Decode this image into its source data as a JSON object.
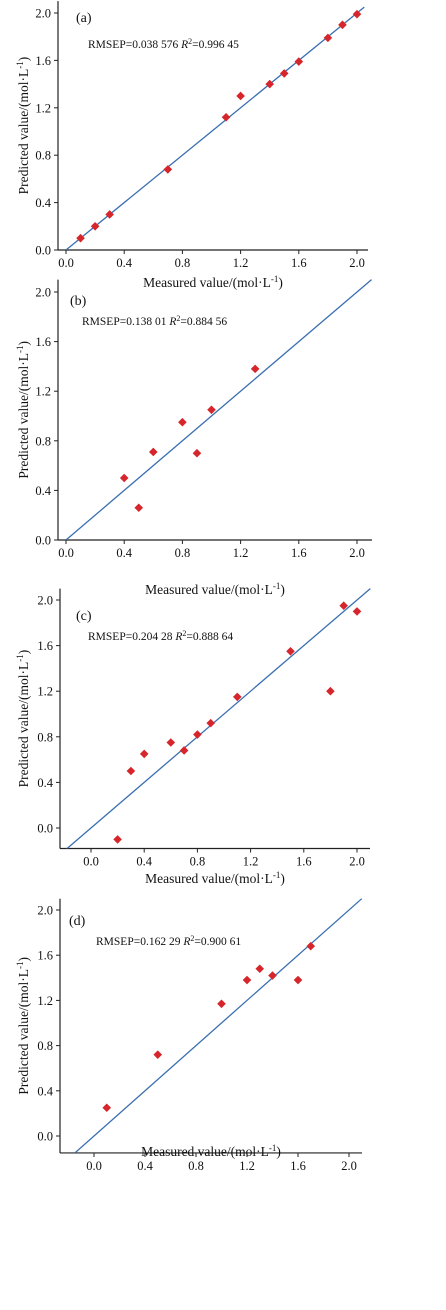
{
  "chart_data": [
    {
      "type": "scatter",
      "panel_label": "(a)",
      "stats_rmsep": "RMSEP=0.038 576",
      "stats_r2": "=0.996 45",
      "xlabel": "Measured value/(mol·L",
      "ylabel": "Predicted value/(mol·L",
      "xlim": [
        0,
        2.1
      ],
      "ylim": [
        0,
        2.1
      ],
      "xticks": [
        "0.0",
        "0.4",
        "0.8",
        "1.2",
        "1.6",
        "2.0"
      ],
      "yticks": [
        "0.0",
        "0.4",
        "0.8",
        "1.2",
        "1.6",
        "2.0"
      ],
      "x": [
        0.1,
        0.2,
        0.3,
        0.7,
        1.1,
        1.2,
        1.4,
        1.5,
        1.6,
        1.8,
        1.9,
        2.0
      ],
      "y": [
        0.1,
        0.2,
        0.3,
        0.68,
        1.12,
        1.3,
        1.4,
        1.49,
        1.59,
        1.79,
        1.9,
        1.99
      ],
      "fit_line": [
        [
          0,
          0
        ],
        [
          2.05,
          2.05
        ]
      ]
    },
    {
      "type": "scatter",
      "panel_label": "(b)",
      "stats_rmsep": "RMSEP=0.138 01",
      "stats_r2": "=0.884 56",
      "xlabel": "Measured value/(mol·L",
      "ylabel": "Predicted value/(mol·L",
      "xlim": [
        0,
        2.1
      ],
      "ylim": [
        0,
        2.1
      ],
      "xticks": [
        "0.0",
        "0.4",
        "0.8",
        "1.2",
        "1.6",
        "2.0"
      ],
      "yticks": [
        "0.0",
        "0.4",
        "0.8",
        "1.2",
        "1.6",
        "2.0"
      ],
      "x": [
        0.4,
        0.5,
        0.6,
        0.8,
        0.9,
        1.0,
        1.3
      ],
      "y": [
        0.5,
        0.26,
        0.71,
        0.95,
        0.7,
        1.05,
        1.38
      ],
      "fit_line": [
        [
          0,
          0
        ],
        [
          2.1,
          2.1
        ]
      ]
    },
    {
      "type": "scatter",
      "panel_label": "(c)",
      "stats_rmsep": "RMSEP=0.204 28",
      "stats_r2": "=0.888 64",
      "xlabel": "Measured value/(mol·L",
      "ylabel": "Predicted value/(mol·L",
      "xlim": [
        -0.2,
        2.1
      ],
      "ylim": [
        -0.18,
        2.1
      ],
      "xticks": [
        "0.0",
        "0.4",
        "0.8",
        "1.2",
        "1.6",
        "2.0"
      ],
      "yticks": [
        "0.0",
        "0.4",
        "0.8",
        "1.2",
        "1.6",
        "2.0"
      ],
      "x": [
        0.2,
        0.3,
        0.4,
        0.6,
        0.7,
        0.8,
        0.9,
        1.1,
        1.5,
        1.8,
        1.9,
        2.0
      ],
      "y": [
        -0.1,
        0.5,
        0.65,
        0.75,
        0.68,
        0.82,
        0.92,
        1.15,
        1.55,
        1.2,
        1.95,
        1.9
      ],
      "fit_line": [
        [
          -0.2,
          -0.2
        ],
        [
          2.1,
          2.1
        ]
      ]
    },
    {
      "type": "scatter",
      "panel_label": "(d)",
      "stats_rmsep": "RMSEP=0.162 29",
      "stats_r2": "=0.900 61",
      "xlabel": "Measured value/(mol·L",
      "ylabel": "Predicted value/(mol·L",
      "xlim": [
        -0.2,
        2.1
      ],
      "ylim": [
        -0.15,
        2.1
      ],
      "xticks": [
        "0.0",
        "0.4",
        "0.8",
        "1.2",
        "1.6",
        "2.0"
      ],
      "yticks": [
        "0.0",
        "0.4",
        "0.8",
        "1.2",
        "1.6",
        "2.0"
      ],
      "x": [
        0.1,
        0.5,
        1.0,
        1.2,
        1.3,
        1.4,
        1.6,
        1.7
      ],
      "y": [
        0.25,
        0.72,
        1.17,
        1.38,
        1.48,
        1.42,
        1.38,
        1.68
      ],
      "fit_line": [
        [
          -0.15,
          -0.15
        ],
        [
          2.1,
          2.1
        ]
      ]
    }
  ],
  "style": {
    "point_color": "#d6262b",
    "line_color": "#3a6fb0",
    "axis_color": "#222222"
  }
}
